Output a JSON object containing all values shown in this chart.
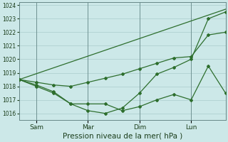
{
  "background_color": "#cce8e8",
  "grid_color": "#aacccc",
  "line_color": "#2d6e2d",
  "marker_color": "#2d6e2d",
  "xlabel": "Pression niveau de la mer( hPa )",
  "ylim": [
    1015.5,
    1024.2
  ],
  "yticks": [
    1016,
    1017,
    1018,
    1019,
    1020,
    1021,
    1022,
    1023,
    1024
  ],
  "x_tick_labels": [
    "Sam",
    "Mar",
    "Dim",
    "Lun"
  ],
  "x_tick_positions": [
    8,
    32,
    56,
    80
  ],
  "x_vlines": [
    8,
    32,
    56,
    80
  ],
  "xlim": [
    0,
    96
  ],
  "trend_x": [
    0,
    96
  ],
  "trend_y": [
    1018.5,
    1023.7
  ],
  "smooth_x": [
    0,
    8,
    16,
    24,
    32,
    40,
    48,
    56,
    64,
    72,
    80,
    88,
    96
  ],
  "smooth_y": [
    1018.5,
    1018.3,
    1018.1,
    1018.0,
    1018.3,
    1018.6,
    1018.9,
    1019.3,
    1019.7,
    1020.1,
    1020.2,
    1021.8,
    1022.0
  ],
  "jagged_x": [
    0,
    8,
    16,
    24,
    32,
    40,
    48,
    56,
    64,
    72,
    80,
    88,
    96
  ],
  "jagged_y": [
    1018.5,
    1018.1,
    1017.6,
    1016.7,
    1016.7,
    1016.7,
    1016.2,
    1016.5,
    1017.0,
    1017.4,
    1017.0,
    1019.5,
    1017.5
  ],
  "detail_x": [
    0,
    8,
    16,
    24,
    32,
    40,
    48,
    56,
    64,
    72,
    80,
    88,
    96
  ],
  "detail_y": [
    1018.5,
    1018.0,
    1017.5,
    1016.7,
    1016.2,
    1016.0,
    1016.4,
    1017.5,
    1018.9,
    1019.4,
    1020.0,
    1023.0,
    1023.5
  ]
}
